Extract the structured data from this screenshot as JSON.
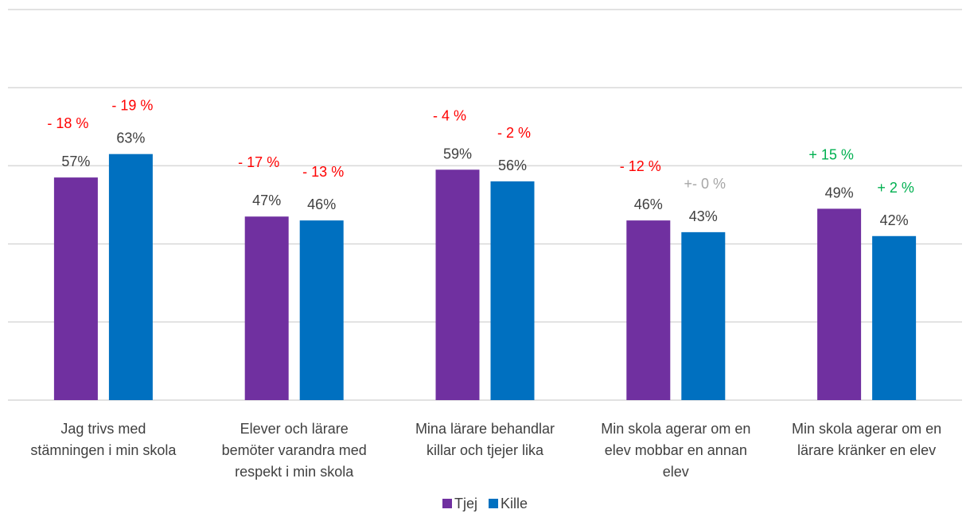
{
  "chart_data": {
    "type": "bar",
    "ylim": [
      0,
      100
    ],
    "gridlines": [
      20,
      40,
      60,
      80,
      100
    ],
    "categories": [
      [
        "Jag trivs med",
        "stämningen i min skola"
      ],
      [
        "Elever och lärare",
        "bemöter varandra med",
        "respekt i min skola"
      ],
      [
        "Mina lärare behandlar",
        "killar och tjejer lika"
      ],
      [
        "Min skola agerar om en",
        "elev mobbar en annan",
        "elev"
      ],
      [
        "Min skola agerar om en",
        "lärare kränker en elev"
      ]
    ],
    "series": [
      {
        "name": "Tjej",
        "color": "#7030A0",
        "values": [
          57,
          47,
          59,
          46,
          49
        ],
        "labels": [
          "57%",
          "47%",
          "59%",
          "46%",
          "49%"
        ],
        "changes": [
          "- 18 %",
          "- 17 %",
          "- 4 %",
          "- 12 %",
          "+ 15 %"
        ],
        "change_colors": [
          "#FF0000",
          "#FF0000",
          "#FF0000",
          "#FF0000",
          "#00B050"
        ]
      },
      {
        "name": "Kille",
        "color": "#0070C0",
        "values": [
          63,
          46,
          56,
          43,
          42
        ],
        "labels": [
          "63%",
          "46%",
          "56%",
          "43%",
          "42%"
        ],
        "changes": [
          "- 19 %",
          "- 13 %",
          "- 2 %",
          "+- 0 %",
          "+ 2 %"
        ],
        "change_colors": [
          "#FF0000",
          "#FF0000",
          "#FF0000",
          "#A6A6A6",
          "#00B050"
        ]
      }
    ],
    "legend": {
      "position": "bottom",
      "items": [
        "Tjej",
        "Kille"
      ]
    }
  }
}
